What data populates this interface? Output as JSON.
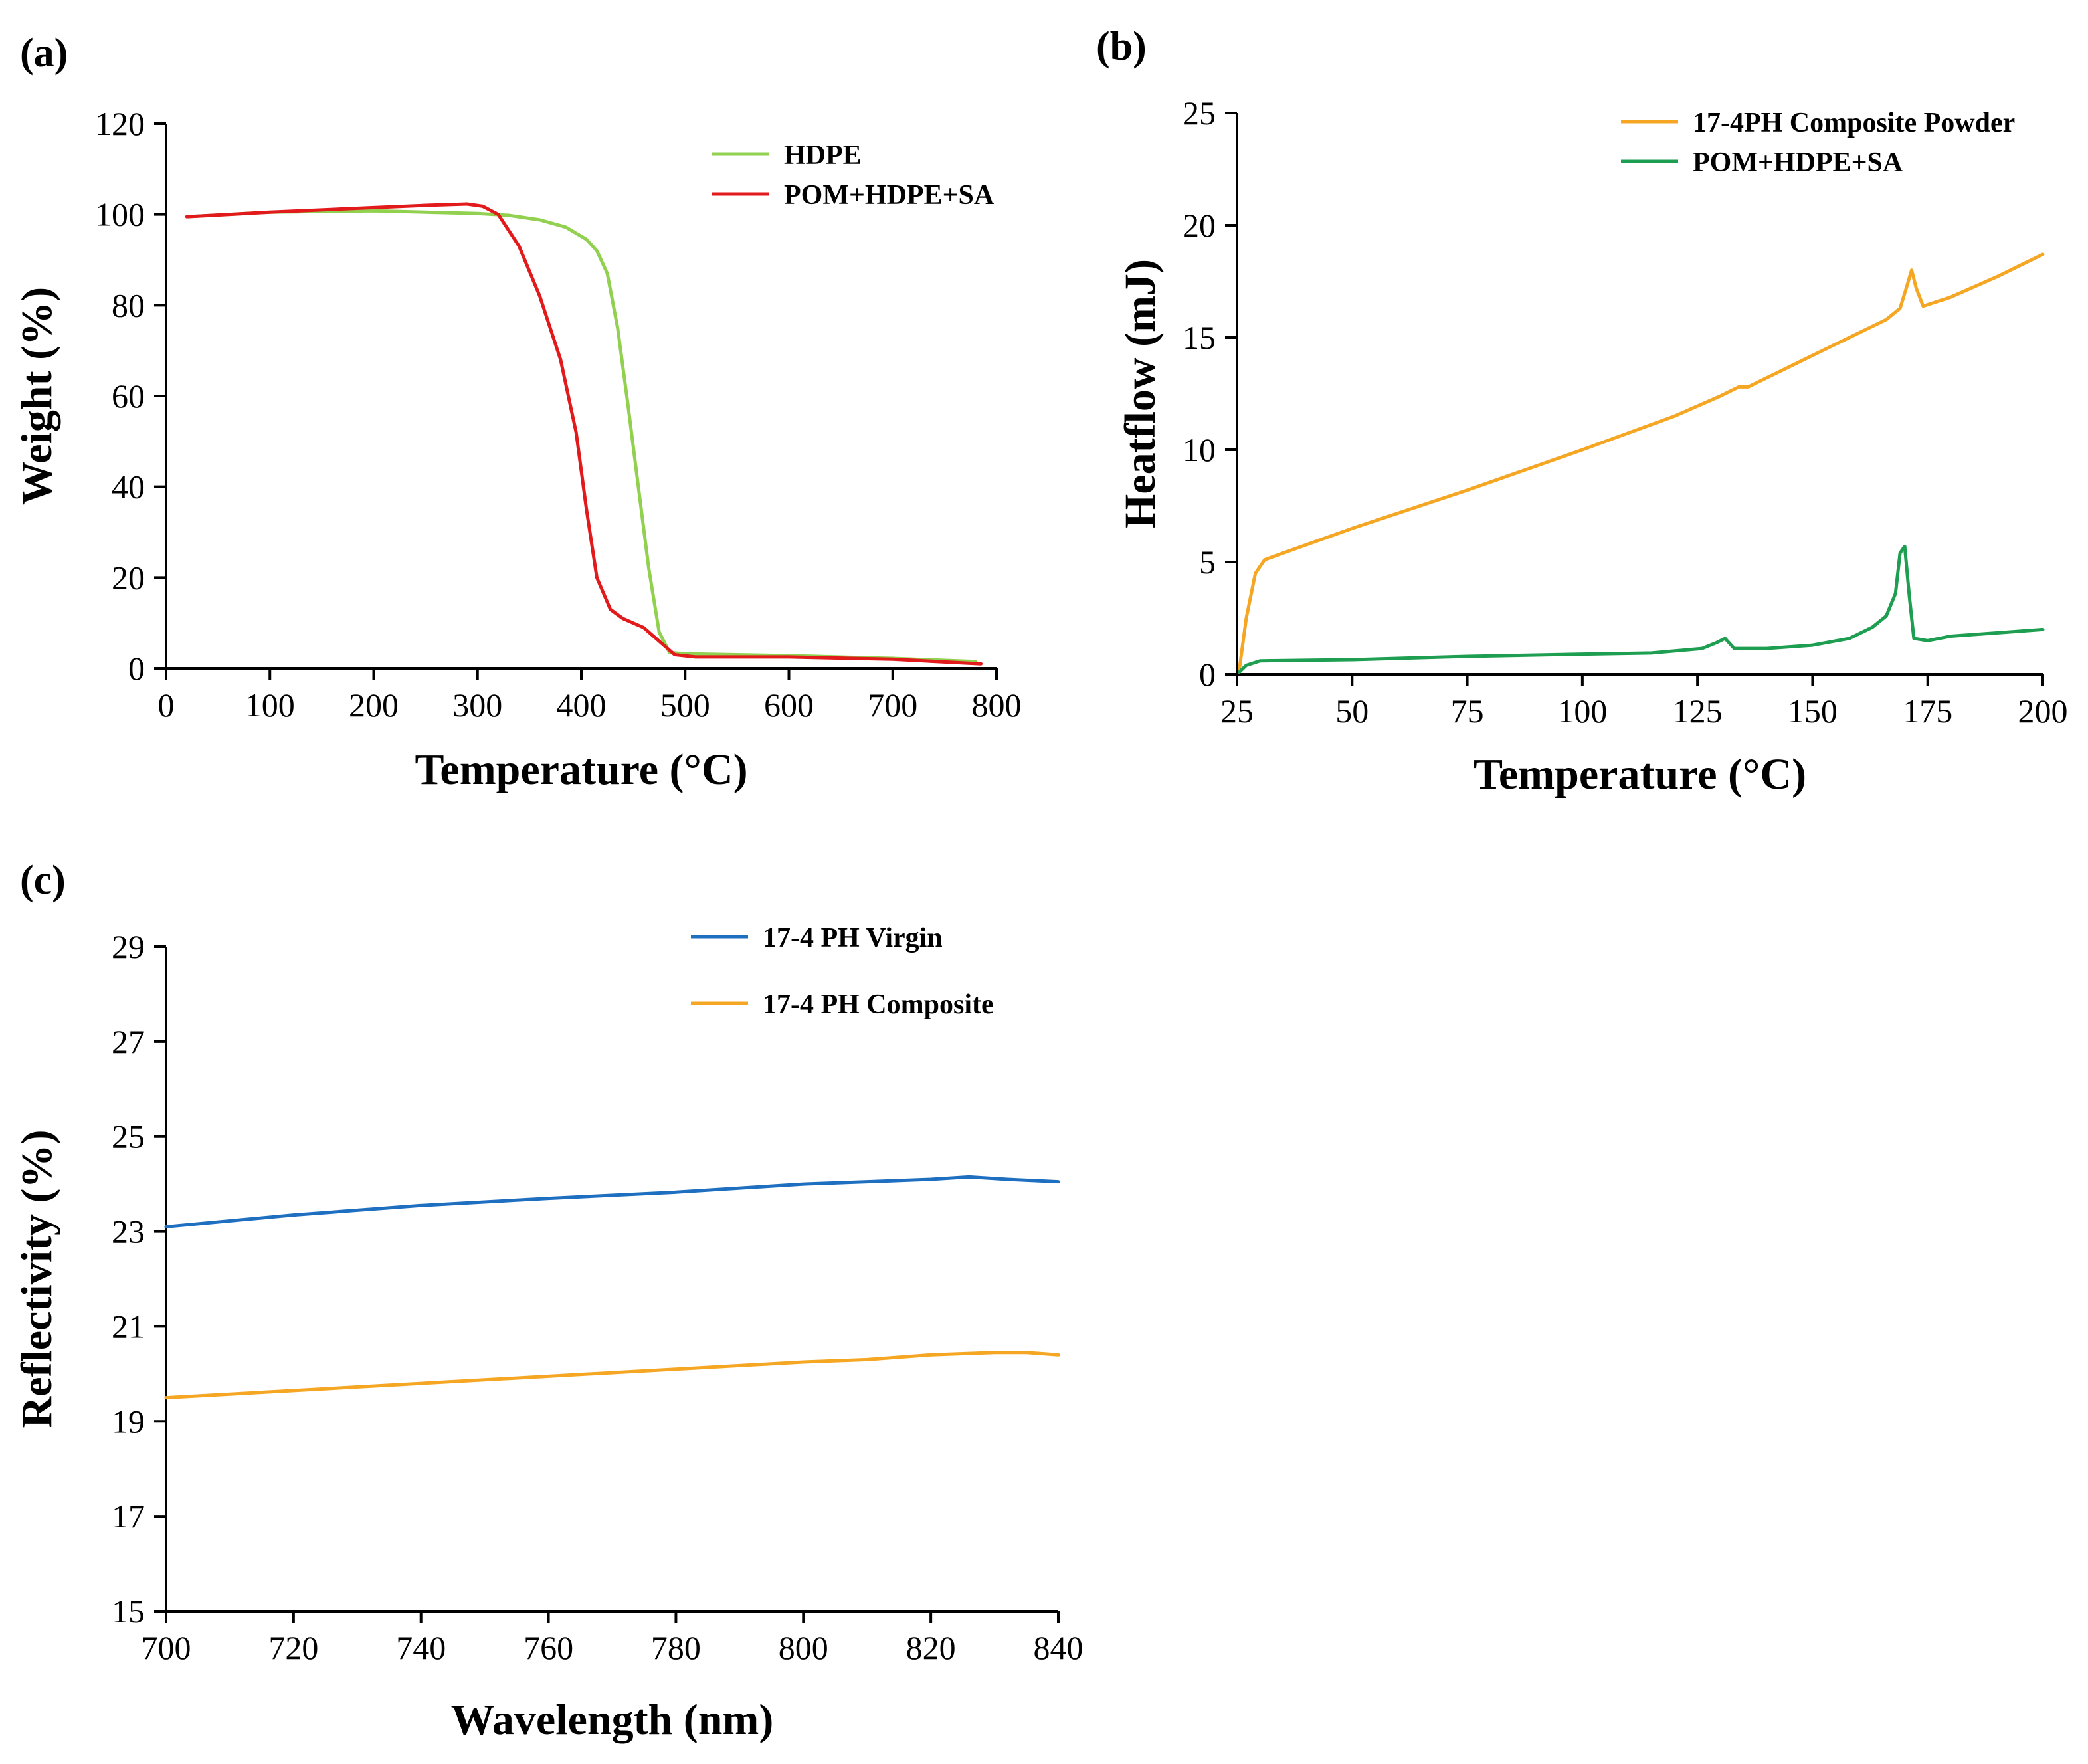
{
  "chart_data": [
    {
      "type": "line",
      "panel_label": "(a)",
      "title": "",
      "xlabel": "Temperature (°C)",
      "ylabel": "Weight (%)",
      "xlim": [
        0,
        800
      ],
      "ylim": [
        0,
        120
      ],
      "x_ticks": [
        0,
        100,
        200,
        300,
        400,
        500,
        600,
        700,
        800
      ],
      "y_ticks": [
        0,
        20,
        40,
        60,
        80,
        100,
        120
      ],
      "grid": false,
      "legend_position": "top-right",
      "series": [
        {
          "name": "HDPE",
          "color": "#92d050",
          "points": [
            [
              20,
              99.5
            ],
            [
              100,
              100.5
            ],
            [
              200,
              100.8
            ],
            [
              300,
              100.2
            ],
            [
              330,
              99.8
            ],
            [
              360,
              98.8
            ],
            [
              385,
              97.2
            ],
            [
              405,
              94.5
            ],
            [
              415,
              92
            ],
            [
              425,
              87
            ],
            [
              435,
              75
            ],
            [
              445,
              58
            ],
            [
              455,
              40
            ],
            [
              465,
              22
            ],
            [
              475,
              8
            ],
            [
              485,
              3.5
            ],
            [
              500,
              3.2
            ],
            [
              600,
              2.8
            ],
            [
              700,
              2.2
            ],
            [
              780,
              1.5
            ]
          ]
        },
        {
          "name": "POM+HDPE+SA",
          "color": "#e31a1c",
          "points": [
            [
              20,
              99.5
            ],
            [
              100,
              100.5
            ],
            [
              200,
              101.5
            ],
            [
              250,
              102
            ],
            [
              290,
              102.3
            ],
            [
              305,
              101.8
            ],
            [
              320,
              100
            ],
            [
              340,
              93
            ],
            [
              360,
              82
            ],
            [
              380,
              68
            ],
            [
              395,
              52
            ],
            [
              405,
              35
            ],
            [
              415,
              20
            ],
            [
              428,
              13
            ],
            [
              440,
              11
            ],
            [
              460,
              9
            ],
            [
              475,
              6
            ],
            [
              490,
              3
            ],
            [
              510,
              2.5
            ],
            [
              600,
              2.5
            ],
            [
              700,
              2
            ],
            [
              785,
              1
            ]
          ]
        }
      ]
    },
    {
      "type": "line",
      "panel_label": "(b)",
      "title": "",
      "xlabel": "Temperature (°C)",
      "ylabel": "Heatflow (mJ)",
      "xlim": [
        25,
        200
      ],
      "ylim": [
        0,
        25
      ],
      "x_ticks": [
        25,
        50,
        75,
        100,
        125,
        150,
        175,
        200
      ],
      "y_ticks": [
        0,
        5,
        10,
        15,
        20,
        25
      ],
      "grid": false,
      "legend_position": "top-right",
      "series": [
        {
          "name": "17-4PH Composite Powder",
          "color": "#f5a623",
          "points": [
            [
              25.5,
              0.2
            ],
            [
              27,
              2.5
            ],
            [
              29,
              4.5
            ],
            [
              31,
              5.1
            ],
            [
              35,
              5.4
            ],
            [
              50,
              6.5
            ],
            [
              75,
              8.2
            ],
            [
              100,
              10
            ],
            [
              120,
              11.5
            ],
            [
              130,
              12.4
            ],
            [
              134,
              12.8
            ],
            [
              136,
              12.8
            ],
            [
              138,
              13
            ],
            [
              150,
              14.2
            ],
            [
              160,
              15.2
            ],
            [
              166,
              15.8
            ],
            [
              169,
              16.3
            ],
            [
              170.5,
              17.3
            ],
            [
              171.5,
              18
            ],
            [
              172.5,
              17.2
            ],
            [
              174,
              16.4
            ],
            [
              180,
              16.8
            ],
            [
              190,
              17.7
            ],
            [
              200,
              18.7
            ]
          ]
        },
        {
          "name": "POM+HDPE+SA",
          "color": "#1e9e50",
          "points": [
            [
              25.5,
              0.1
            ],
            [
              27,
              0.4
            ],
            [
              30,
              0.6
            ],
            [
              50,
              0.65
            ],
            [
              75,
              0.8
            ],
            [
              100,
              0.9
            ],
            [
              115,
              0.95
            ],
            [
              126,
              1.15
            ],
            [
              129,
              1.4
            ],
            [
              131,
              1.6
            ],
            [
              133,
              1.15
            ],
            [
              140,
              1.15
            ],
            [
              150,
              1.3
            ],
            [
              158,
              1.6
            ],
            [
              163,
              2.1
            ],
            [
              166,
              2.6
            ],
            [
              168,
              3.6
            ],
            [
              169,
              5.4
            ],
            [
              170,
              5.7
            ],
            [
              171,
              3.5
            ],
            [
              172,
              1.6
            ],
            [
              175,
              1.5
            ],
            [
              180,
              1.7
            ],
            [
              190,
              1.85
            ],
            [
              200,
              2
            ]
          ]
        }
      ]
    },
    {
      "type": "line",
      "panel_label": "(c)",
      "title": "",
      "xlabel": "Wavelength (nm)",
      "ylabel": "Reflectivity (%)",
      "xlim": [
        700,
        840
      ],
      "ylim": [
        15,
        29
      ],
      "x_ticks": [
        700,
        720,
        740,
        760,
        780,
        800,
        820,
        840
      ],
      "y_ticks": [
        15,
        17,
        19,
        21,
        23,
        25,
        27,
        29
      ],
      "grid": false,
      "legend_position": "top-right",
      "series": [
        {
          "name": "17-4 PH Virgin",
          "color": "#1f6fc1",
          "points": [
            [
              700,
              23.1
            ],
            [
              720,
              23.35
            ],
            [
              740,
              23.55
            ],
            [
              760,
              23.7
            ],
            [
              780,
              23.83
            ],
            [
              800,
              24
            ],
            [
              810,
              24.05
            ],
            [
              820,
              24.1
            ],
            [
              826,
              24.15
            ],
            [
              832,
              24.1
            ],
            [
              840,
              24.05
            ]
          ]
        },
        {
          "name": "17-4 PH Composite",
          "color": "#f5a623",
          "points": [
            [
              700,
              19.5
            ],
            [
              720,
              19.65
            ],
            [
              740,
              19.8
            ],
            [
              760,
              19.95
            ],
            [
              780,
              20.1
            ],
            [
              800,
              20.25
            ],
            [
              810,
              20.3
            ],
            [
              820,
              20.4
            ],
            [
              830,
              20.45
            ],
            [
              835,
              20.45
            ],
            [
              840,
              20.4
            ]
          ]
        }
      ]
    }
  ]
}
